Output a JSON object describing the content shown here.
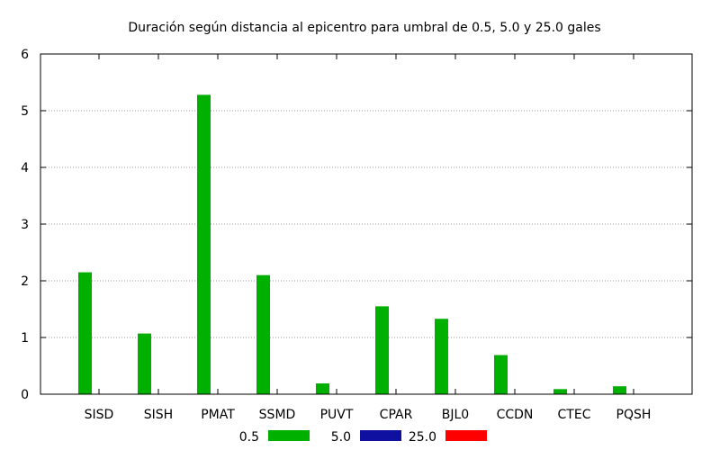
{
  "chart_data": {
    "type": "bar",
    "title": "Duración según distancia al epicentro para umbral de 0.5, 5.0 y 25.0 gales",
    "xlabel": "",
    "ylabel": "",
    "ylim": [
      0,
      6
    ],
    "yticks": [
      "0",
      "1",
      "2",
      "3",
      "4",
      "5",
      "6"
    ],
    "categories": [
      "SISD",
      "SISH",
      "PMAT",
      "SSMD",
      "PUVT",
      "CPAR",
      "BJL0",
      "CCDN",
      "CTEC",
      "PQSH"
    ],
    "grid": "horizontal-dotted",
    "legend_position": "bottom",
    "series": [
      {
        "name": "0.5",
        "color": "#00b000",
        "values": [
          2.15,
          1.07,
          5.28,
          2.1,
          0.19,
          1.55,
          1.33,
          0.69,
          0.09,
          0.14
        ]
      },
      {
        "name": "5.0",
        "color": "#1010a0",
        "values": [
          0,
          0,
          0,
          0,
          0,
          0,
          0,
          0,
          0,
          0
        ]
      },
      {
        "name": "25.0",
        "color": "#ff0000",
        "values": [
          0,
          0,
          0,
          0,
          0,
          0,
          0,
          0,
          0,
          0
        ]
      }
    ]
  }
}
